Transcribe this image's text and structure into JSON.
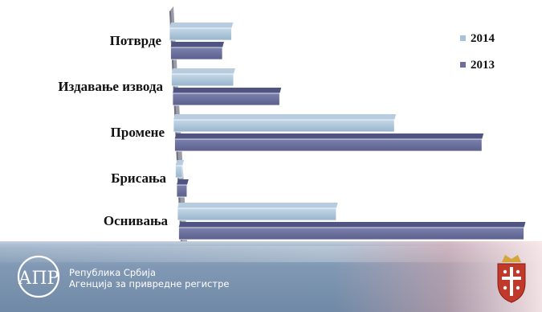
{
  "chart_data": {
    "type": "bar",
    "orientation": "horizontal",
    "categories": [
      "Потврде",
      "Издавање извода",
      "Промене",
      "Брисања",
      "Оснивања"
    ],
    "series": [
      {
        "name": "2014",
        "values": [
          18,
          18,
          64,
          2,
          46
        ]
      },
      {
        "name": "2013",
        "values": [
          15,
          31,
          89,
          3,
          100
        ]
      }
    ],
    "xlim": [
      0,
      100
    ],
    "legend_position": "top-right",
    "grid": false,
    "colors": {
      "2014": "#a9c2d7",
      "2013": "#6a6f9d"
    }
  },
  "footer": {
    "agency_line1": "Република Србија",
    "agency_line2": "Агенција за привредне регистре",
    "logo_text": "АПР"
  }
}
